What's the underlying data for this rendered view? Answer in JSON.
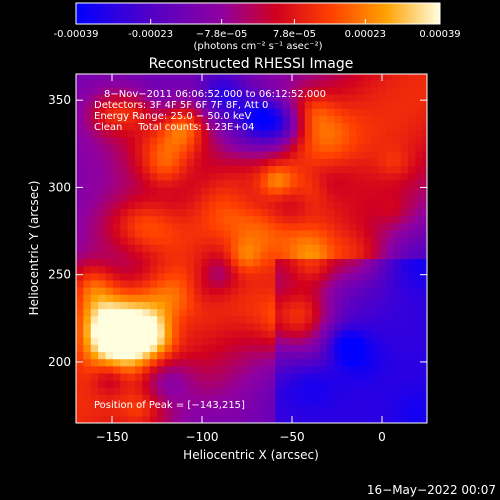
{
  "chart_data": {
    "type": "heatmap",
    "title": "Reconstructed RHESSI Image",
    "xlabel": "Heliocentric X (arcsec)",
    "ylabel": "Heliocentric Y (arcsec)",
    "xlim": [
      -170,
      25
    ],
    "ylim": [
      165,
      365
    ],
    "xticks": [
      -150,
      -100,
      -50,
      0
    ],
    "yticks": [
      200,
      250,
      300,
      350
    ],
    "colorbar": {
      "range": [
        -0.00039,
        0.00039
      ],
      "tick_values": [
        -0.00039,
        -0.00023,
        -7.8e-05,
        7.8e-05,
        0.00023,
        0.00039
      ],
      "tick_labels": [
        "-0.00039",
        "-0.00023",
        "−7.8e−05",
        "7.8e−05",
        "0.00023",
        "0.00039"
      ],
      "unit_label": "(photons cm⁻² s⁻¹ asec⁻²)"
    },
    "annotations": [
      "8−Nov−2011 06:06:52.000 to 06:12:52.000",
      "Detectors: 3F 4F 5F 6F 7F 8F, Att 0",
      "Energy Range: 25.0 − 50.0 keV",
      "Clean     Total counts: 1.23E+04"
    ],
    "peak_label": "Position of Peak = [−143,215]",
    "peak": [
      -143,
      215
    ],
    "timestamp": "16−May−2022 00:07"
  }
}
